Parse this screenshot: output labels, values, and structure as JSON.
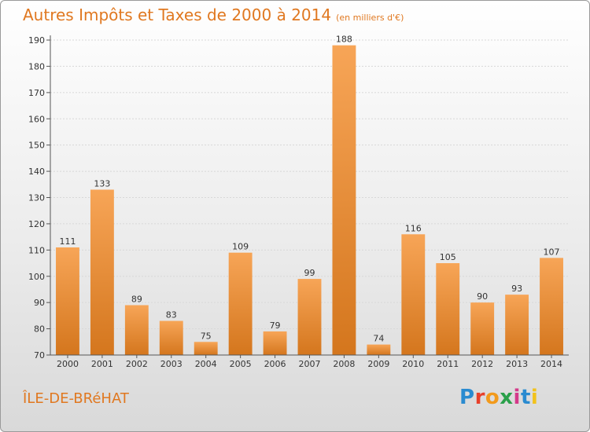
{
  "title": "Autres Impôts et Taxes de 2000 à 2014",
  "unit": "(en milliers d'€)",
  "place": "ÎLE-DE-BRéHAT",
  "logo_letters": [
    "P",
    "r",
    "o",
    "x",
    "i",
    "t",
    "i"
  ],
  "colors": {
    "title": "#e07820",
    "bar_top": "#f7a557",
    "bar_bottom": "#d4761d",
    "grid": "#d8d8d8"
  },
  "chart_data": {
    "type": "bar",
    "title": "Autres Impôts et Taxes de 2000 à 2014",
    "categories": [
      "2000",
      "2001",
      "2002",
      "2003",
      "2004",
      "2005",
      "2006",
      "2007",
      "2008",
      "2009",
      "2010",
      "2011",
      "2012",
      "2013",
      "2014"
    ],
    "values": [
      111,
      133,
      89,
      83,
      75,
      109,
      79,
      99,
      188,
      74,
      116,
      105,
      90,
      93,
      107
    ],
    "ylim": [
      70,
      190
    ],
    "yticks": [
      70,
      80,
      90,
      100,
      110,
      120,
      130,
      140,
      150,
      160,
      170,
      180,
      190
    ],
    "grid": true,
    "legend": "none"
  }
}
